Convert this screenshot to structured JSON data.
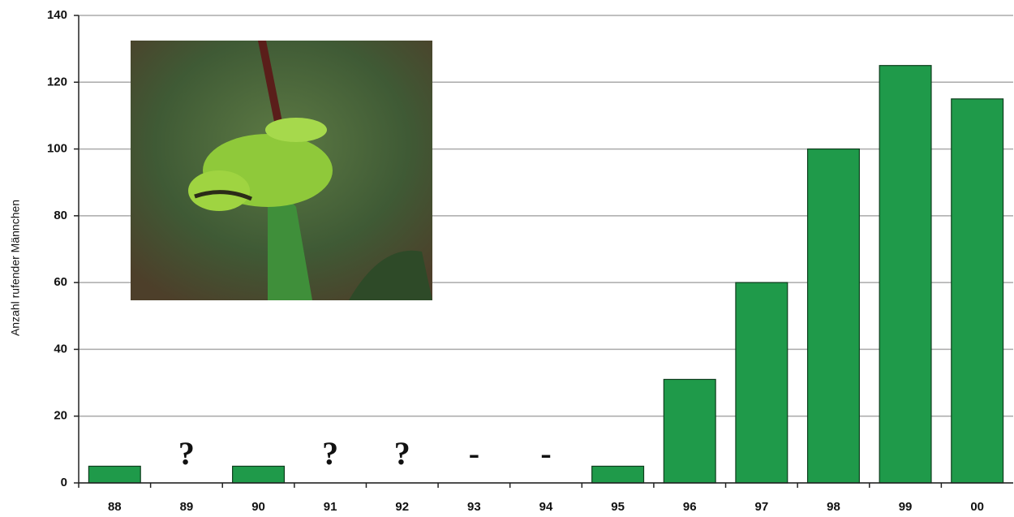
{
  "chart_data": {
    "type": "bar",
    "y_label": "Anzahl rufender Männchen",
    "categories": [
      "88",
      "89",
      "90",
      "91",
      "92",
      "93",
      "94",
      "95",
      "96",
      "97",
      "98",
      "99",
      "00"
    ],
    "values": [
      5,
      null,
      5,
      null,
      null,
      null,
      null,
      5,
      31,
      60,
      100,
      125,
      115
    ],
    "value_labels": [
      null,
      "?",
      null,
      "?",
      "?",
      "-",
      "-",
      null,
      null,
      null,
      null,
      null,
      null
    ],
    "color": "#1f9a4a",
    "ylim": [
      0,
      140
    ],
    "yticks": [
      0,
      20,
      40,
      60,
      80,
      100,
      120,
      140
    ],
    "grid": true
  }
}
